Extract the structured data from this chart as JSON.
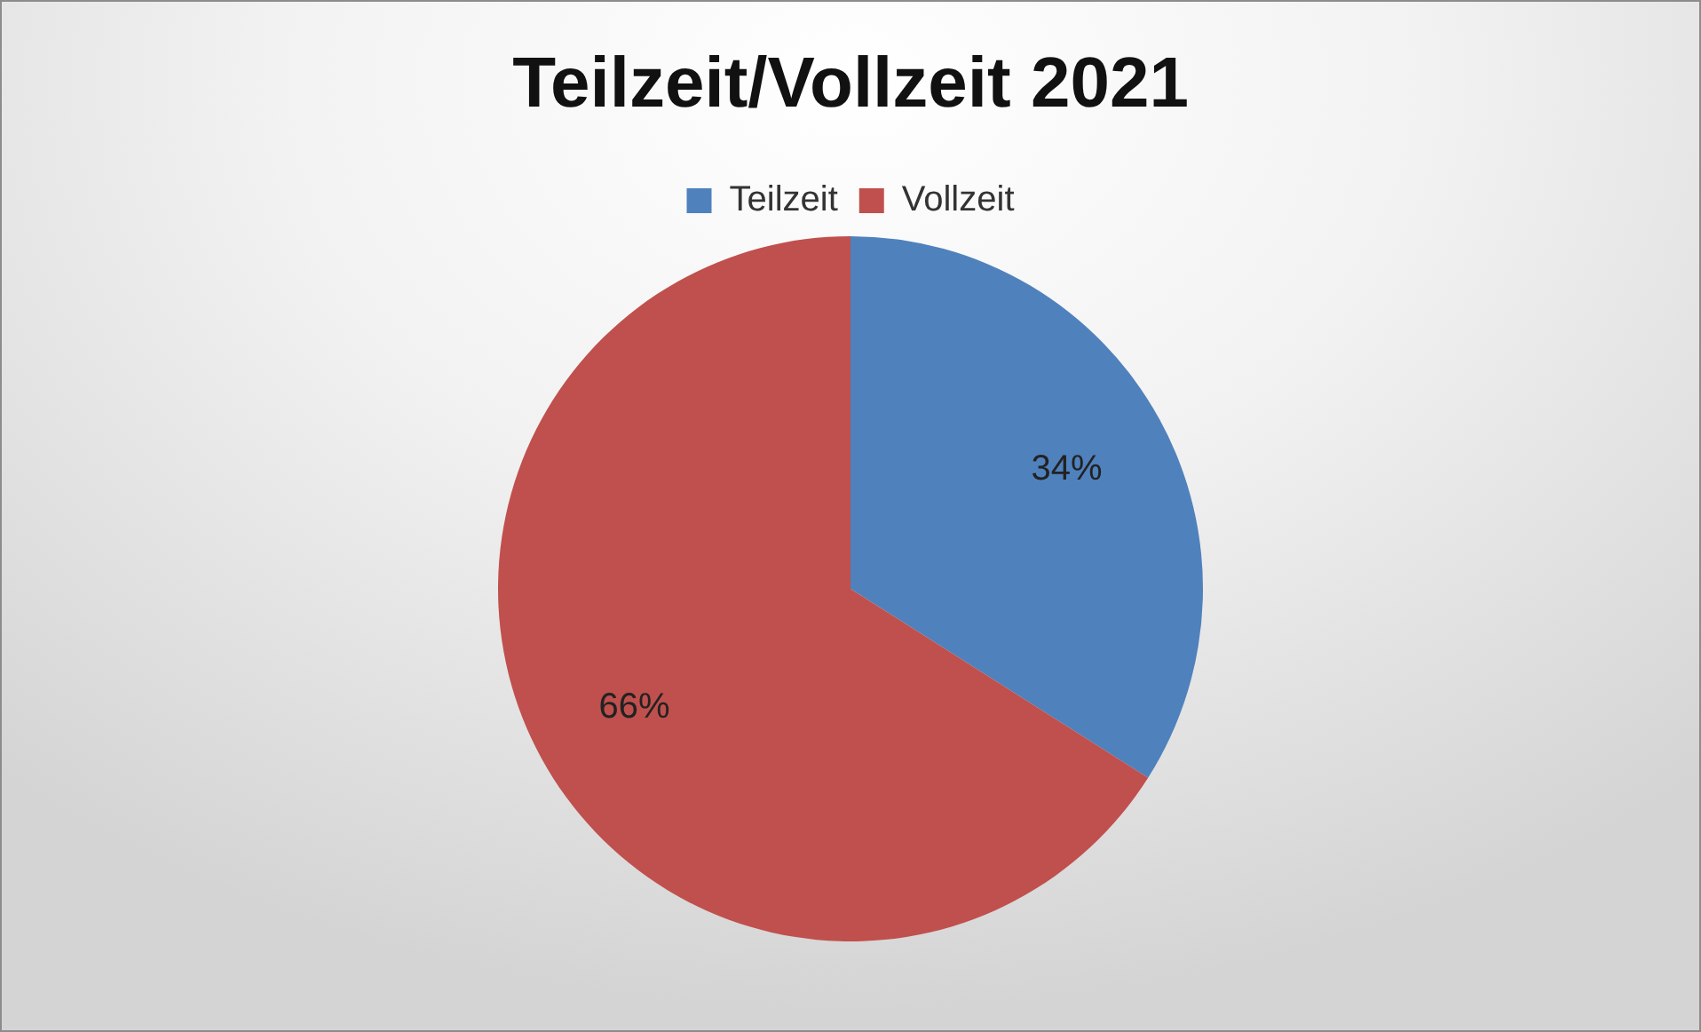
{
  "chart_data": {
    "type": "pie",
    "title": "Teilzeit/Vollzeit 2021",
    "categories": [
      "Teilzeit",
      "Vollzeit"
    ],
    "values": [
      34,
      66
    ],
    "colors": [
      "#4f81bd",
      "#c0504d"
    ],
    "value_labels": [
      "34%",
      "66%"
    ],
    "legend": "top"
  }
}
